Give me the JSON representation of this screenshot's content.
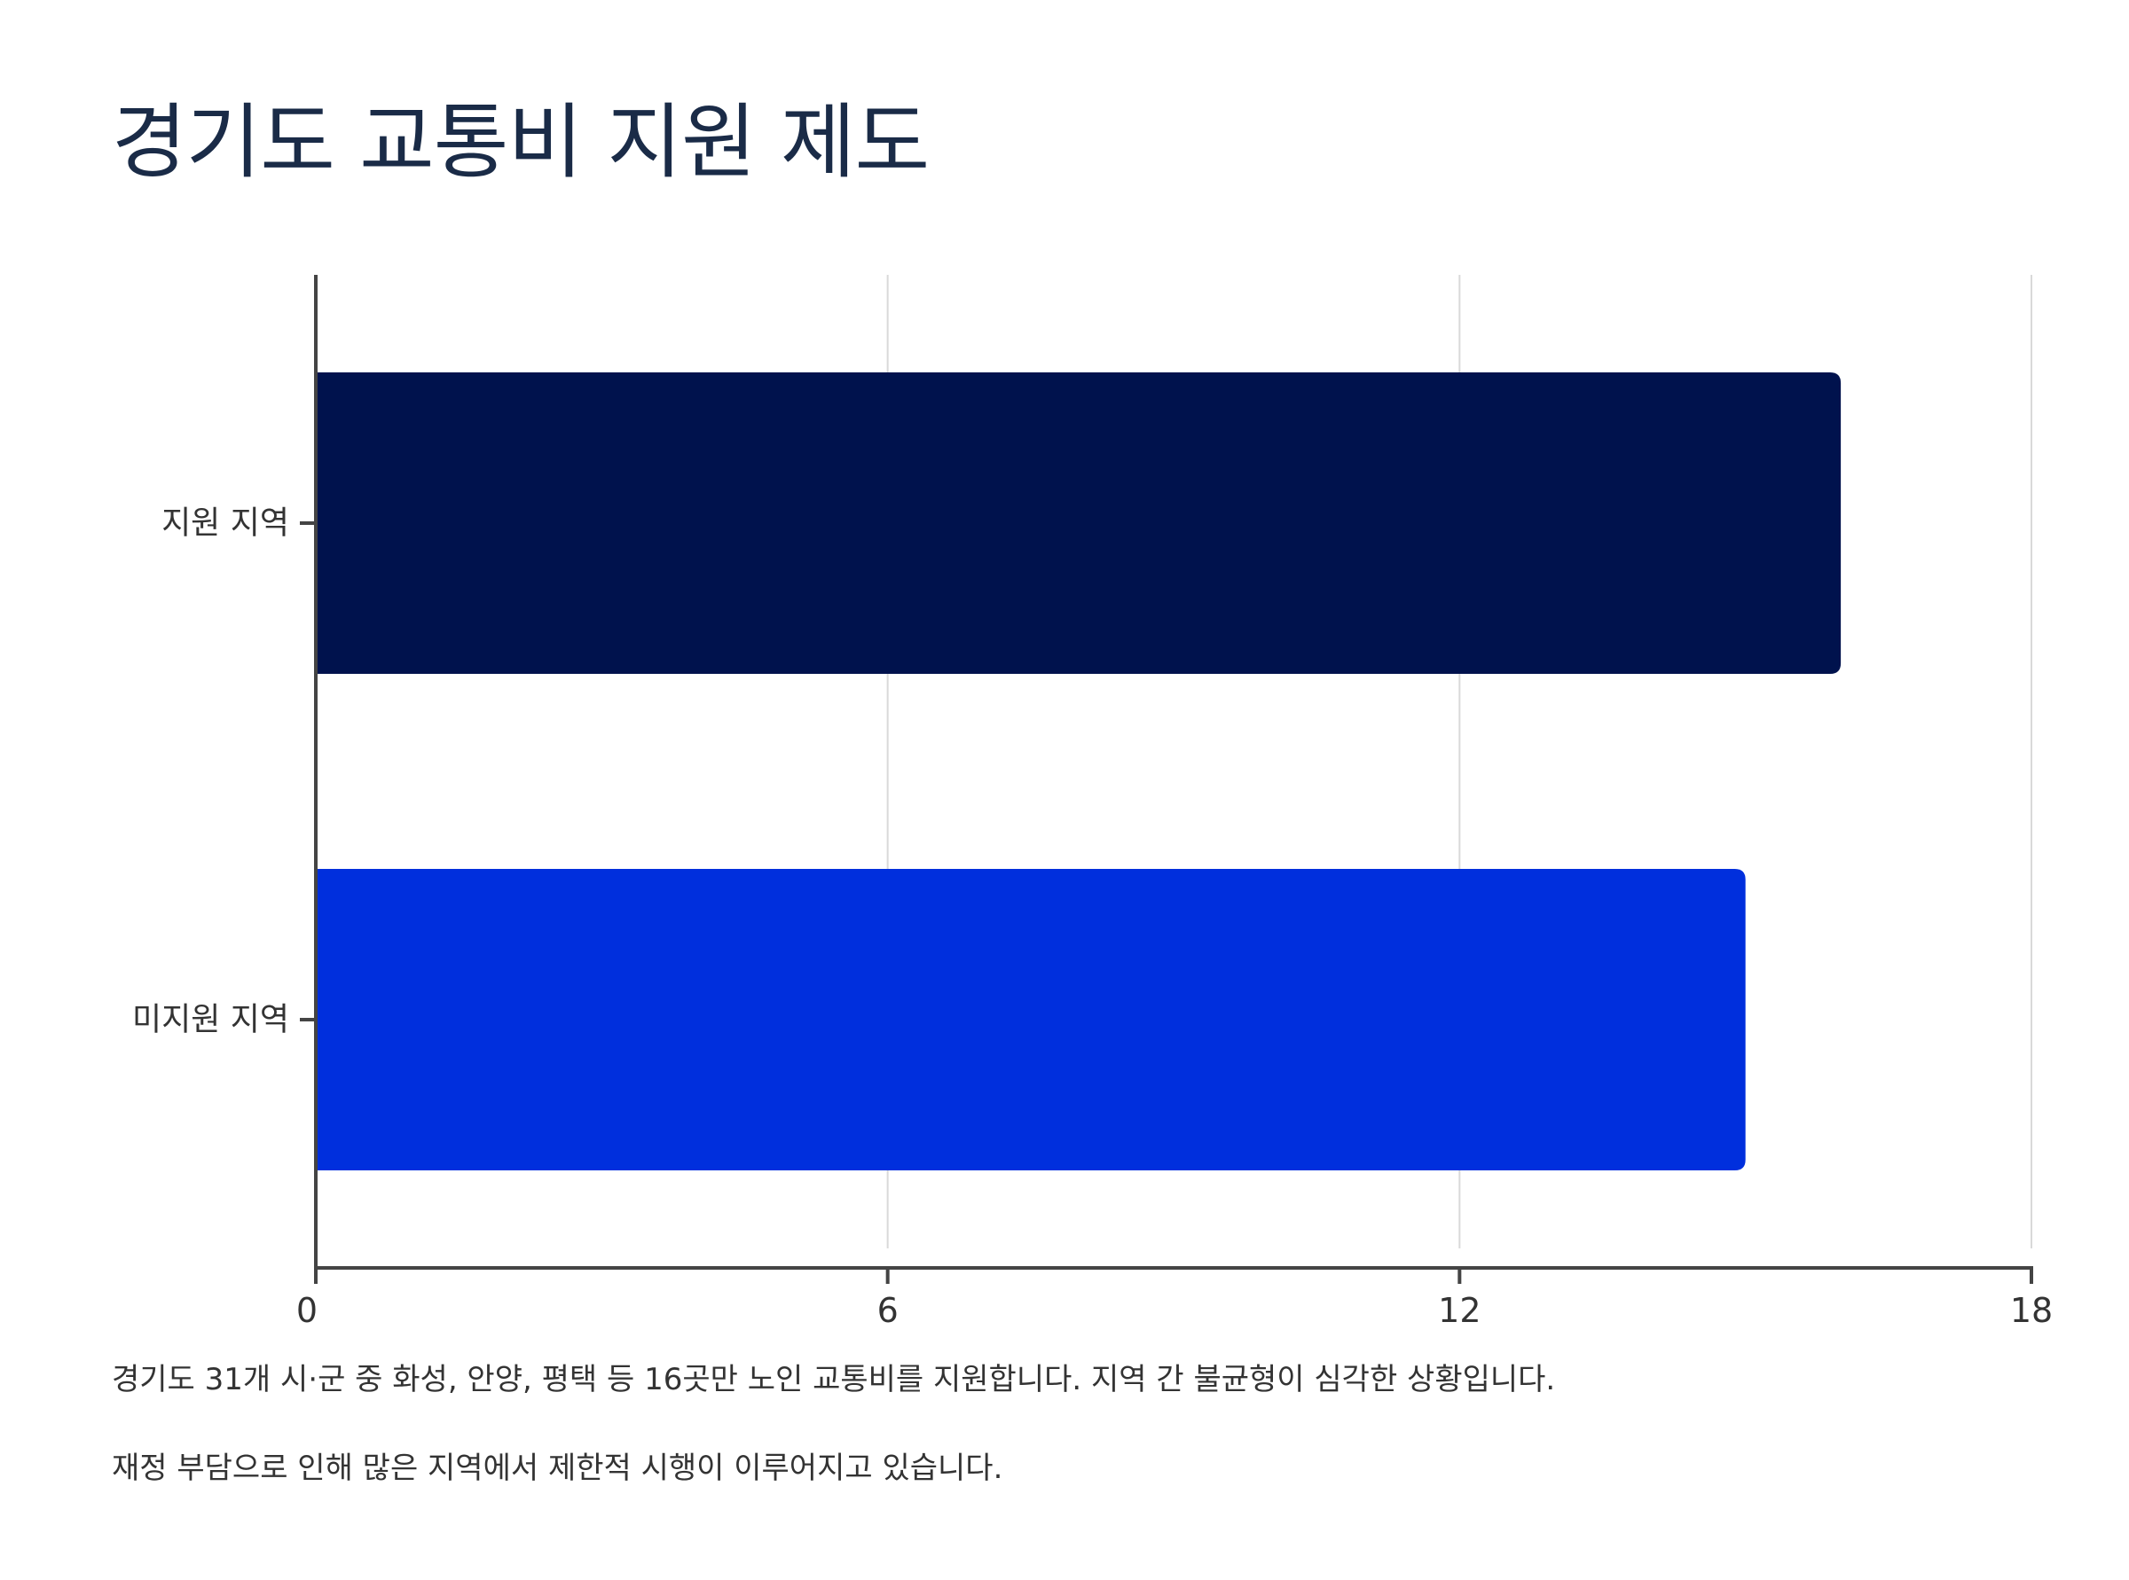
{
  "title": "경기도 교통비 지원 제도",
  "colors": {
    "title": "#1a2b47",
    "grid": "#d9d9d9",
    "axis": "#444444",
    "tick_label": "#333333"
  },
  "chart_data": {
    "type": "bar",
    "orientation": "horizontal",
    "title": "",
    "xlabel": "",
    "ylabel": "",
    "categories": [
      "지원 지역",
      "미지원 지역"
    ],
    "values": [
      16,
      15
    ],
    "bar_colors": [
      "#00124d",
      "#002fdd"
    ],
    "xlim": [
      0,
      18
    ],
    "xticks": [
      0,
      6,
      12,
      18
    ],
    "grid": "vertical",
    "legend": "none"
  },
  "notes": [
    "경기도 31개 시·군 중 화성, 안양, 평택 등 16곳만 노인 교통비를 지원합니다. 지역 간 불균형이 심각한 상황입니다.",
    "재정 부담으로 인해 많은 지역에서 제한적 시행이 이루어지고 있습니다."
  ]
}
